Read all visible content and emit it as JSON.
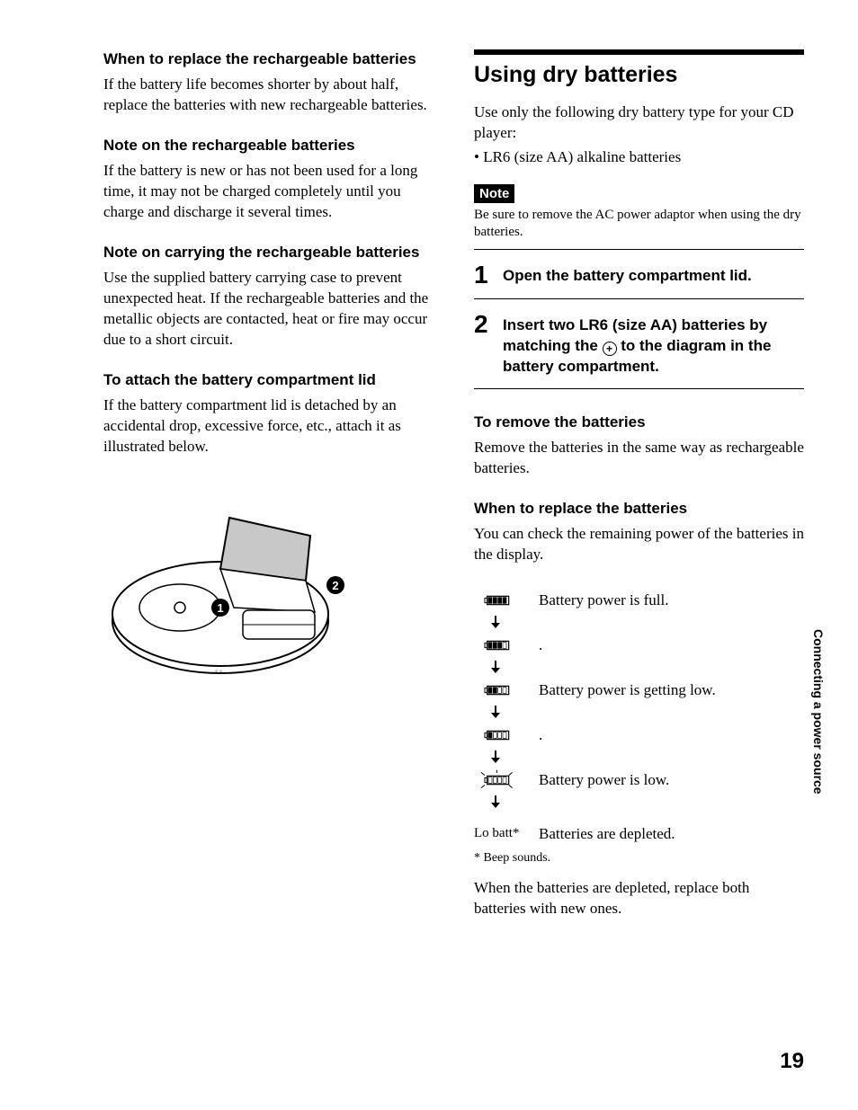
{
  "page_number": "19",
  "side_tab": "Connecting a power source",
  "left": {
    "sec1": {
      "heading": "When to replace the rechargeable batteries",
      "body": "If the battery life becomes shorter by about half, replace the batteries with new rechargeable batteries."
    },
    "sec2": {
      "heading": "Note on the rechargeable batteries",
      "body": "If the battery is new or has not been used for a long time, it may not be charged completely until you charge and discharge it several times."
    },
    "sec3": {
      "heading": "Note on carrying the rechargeable batteries",
      "body": "Use the supplied battery carrying case to prevent unexpected heat. If the rechargeable batteries and the metallic objects are contacted, heat or fire may occur due to a short circuit."
    },
    "sec4": {
      "heading": "To attach the battery compartment lid",
      "body": "If the battery compartment lid is detached by an accidental drop, excessive force, etc., attach it as illustrated below."
    },
    "diagram": {
      "callout1": "1",
      "callout2": "2"
    }
  },
  "right": {
    "title": "Using dry batteries",
    "intro": "Use only the following dry battery type for your CD player:",
    "bullet1": "• LR6 (size AA) alkaline batteries",
    "note_label": "Note",
    "note_body": "Be sure to remove the AC power adaptor when using the dry batteries.",
    "step1": {
      "num": "1",
      "text": "Open the battery compartment lid."
    },
    "step2": {
      "num": "2",
      "text_a": "Insert two LR6 (size AA) batteries by matching the ",
      "text_b": " to the diagram in the battery compartment."
    },
    "remove": {
      "heading": "To remove the batteries",
      "body": "Remove the batteries in the same way as rechargeable batteries."
    },
    "replace": {
      "heading": "When to replace the batteries",
      "body": "You can check the remaining power of the batteries in the display."
    },
    "battery_states": [
      {
        "bars": 4,
        "label": "Battery power is full.",
        "flash": false
      },
      {
        "bars": 3,
        "label": ".",
        "flash": false
      },
      {
        "bars": 2,
        "label": "Battery power is getting low.",
        "flash": false
      },
      {
        "bars": 1,
        "label": ".",
        "flash": false
      },
      {
        "bars": 0,
        "label": "Battery power is low.",
        "flash": true
      }
    ],
    "lo_batt": "Lo batt*",
    "lo_batt_label": "Batteries are depleted.",
    "beep": "* Beep sounds.",
    "closing": "When the batteries are depleted, replace both batteries with new ones."
  },
  "colors": {
    "text": "#000000",
    "background": "#ffffff",
    "rule": "#000000"
  }
}
